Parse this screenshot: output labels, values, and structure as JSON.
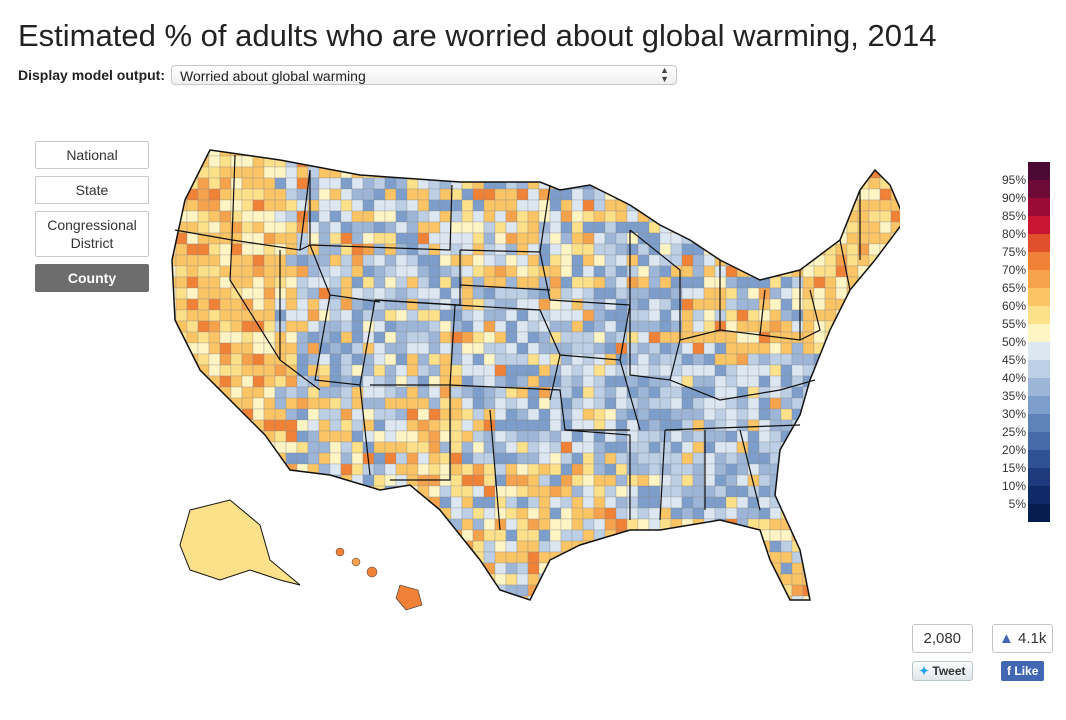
{
  "page": {
    "title": "Estimated % of adults who are worried about global warming, 2014"
  },
  "controls": {
    "label": "Display model output:",
    "select_value": "Worried about global warming"
  },
  "geo_buttons": [
    {
      "label": "National",
      "active": false
    },
    {
      "label": "State",
      "active": false
    },
    {
      "label": "Congressional District",
      "active": false
    },
    {
      "label": "County",
      "active": true
    }
  ],
  "legend": {
    "labels": [
      "95%",
      "90%",
      "85%",
      "80%",
      "75%",
      "70%",
      "65%",
      "60%",
      "55%",
      "50%",
      "45%",
      "40%",
      "35%",
      "30%",
      "25%",
      "20%",
      "15%",
      "10%",
      "5%"
    ],
    "colors": [
      "#4a0a33",
      "#6d0a35",
      "#9b0b36",
      "#c81632",
      "#e0502a",
      "#ef8236",
      "#f5a24c",
      "#fbc465",
      "#fde08a",
      "#fff4c4",
      "#dce7f2",
      "#bccfe5",
      "#9db6d8",
      "#7d9dca",
      "#5f83b9",
      "#4669a7",
      "#2f5093",
      "#1f3a7c",
      "#0f2a66",
      "#081d4f"
    ]
  },
  "social": {
    "tweet_count": "2,080",
    "tweet_label": "Tweet",
    "like_count": "4.1k",
    "like_label": "Like"
  },
  "colors": {
    "map_border": "#111111",
    "county_stroke": "#8a8a8a"
  }
}
